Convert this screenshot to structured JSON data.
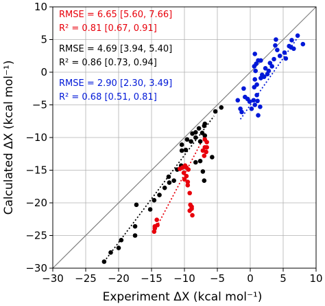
{
  "chart_data": {
    "type": "scatter",
    "xlabel": "Experiment ΔX (kcal mol⁻¹)",
    "ylabel": "Calculated ΔX (kcal mol⁻¹)",
    "xlim": [
      -30,
      10
    ],
    "ylim": [
      -30,
      10
    ],
    "xticks": [
      -30,
      -25,
      -20,
      -15,
      -10,
      -5,
      0,
      5,
      10
    ],
    "yticks": [
      -30,
      -25,
      -20,
      -15,
      -10,
      -5,
      0,
      5,
      10
    ],
    "grid": true,
    "identity_line": true,
    "colors": {
      "red": "#e8000b",
      "black": "#000000",
      "blue": "#0018d8",
      "grid": "#b0b0b0",
      "identity": "#808080"
    },
    "annotations": [
      {
        "rmse": "RMSE = 6.65 [5.60, 7.66]",
        "r2": "R² = 0.81 [0.67, 0.91]",
        "color": "#e8000b"
      },
      {
        "rmse": "RMSE = 4.69 [3.94, 5.40]",
        "r2": "R² = 0.86 [0.73, 0.94]",
        "color": "#000000"
      },
      {
        "rmse": "RMSE = 2.90 [2.30, 3.49]",
        "r2": "R² = 0.68 [0.51, 0.81]",
        "color": "#0018d8"
      }
    ],
    "series": [
      {
        "color": "#000000",
        "fit": {
          "x": [
            -22.2,
            -5.5
          ],
          "y": [
            -29.0,
            -6.7
          ]
        },
        "points": [
          [
            -22.2,
            -29.0
          ],
          [
            -21.2,
            -27.6
          ],
          [
            -20.0,
            -26.9
          ],
          [
            -19.6,
            -25.7
          ],
          [
            -17.5,
            -25.0
          ],
          [
            -17.5,
            -23.6
          ],
          [
            -17.3,
            -20.3
          ],
          [
            -15.2,
            -21.0
          ],
          [
            -14.6,
            -19.6
          ],
          [
            -13.8,
            -18.8
          ],
          [
            -13.0,
            -17.7
          ],
          [
            -12.3,
            -16.9
          ],
          [
            -12.4,
            -16.0
          ],
          [
            -11.6,
            -16.6
          ],
          [
            -11.1,
            -14.9
          ],
          [
            -10.5,
            -14.3
          ],
          [
            -10.4,
            -12.0
          ],
          [
            -10.4,
            -11.1
          ],
          [
            -9.8,
            -11.9
          ],
          [
            -9.6,
            -10.3
          ],
          [
            -9.0,
            -10.6
          ],
          [
            -8.8,
            -9.4
          ],
          [
            -8.3,
            -10.0
          ],
          [
            -8.3,
            -9.2
          ],
          [
            -7.8,
            -8.6
          ],
          [
            -7.6,
            -10.6
          ],
          [
            -7.3,
            -9.3
          ],
          [
            -7.0,
            -8.2
          ],
          [
            -6.9,
            -9.7
          ],
          [
            -8.3,
            -13.8
          ],
          [
            -7.6,
            -13.6
          ],
          [
            -7.2,
            -15.2
          ],
          [
            -7.0,
            -16.6
          ],
          [
            -5.8,
            -13.0
          ],
          [
            -5.3,
            -6.0
          ],
          [
            -4.4,
            -5.4
          ],
          [
            -6.9,
            -7.9
          ]
        ]
      },
      {
        "color": "#e8000b",
        "fit": {
          "x": [
            -14.7,
            -6.8
          ],
          "y": [
            -24.6,
            -9.5
          ]
        },
        "points": [
          [
            -14.6,
            -24.4
          ],
          [
            -14.5,
            -23.6
          ],
          [
            -14.1,
            -23.4
          ],
          [
            -14.5,
            -23.9
          ],
          [
            -14.2,
            -22.6
          ],
          [
            -10.7,
            -14.8
          ],
          [
            -10.3,
            -14.6
          ],
          [
            -9.9,
            -14.3
          ],
          [
            -9.7,
            -14.6
          ],
          [
            -9.4,
            -14.9
          ],
          [
            -10.1,
            -15.4
          ],
          [
            -9.7,
            -15.9
          ],
          [
            -10.0,
            -16.4
          ],
          [
            -9.5,
            -17.3
          ],
          [
            -9.2,
            -18.5
          ],
          [
            -9.1,
            -20.3
          ],
          [
            -8.9,
            -20.9
          ],
          [
            -8.8,
            -21.9
          ],
          [
            -9.2,
            -21.2
          ],
          [
            -8.9,
            -20.6
          ],
          [
            -9.5,
            -16.8
          ],
          [
            -7.0,
            -12.8
          ],
          [
            -6.7,
            -12.2
          ],
          [
            -6.6,
            -11.5
          ],
          [
            -6.6,
            -10.7
          ],
          [
            -6.9,
            -10.3
          ],
          [
            -7.2,
            -12.0
          ],
          [
            -6.9,
            -11.5
          ]
        ]
      },
      {
        "color": "#0018d8",
        "fit": {
          "x": [
            -1.5,
            7.2
          ],
          "y": [
            -7.2,
            5.3
          ]
        },
        "points": [
          [
            -1.9,
            -4.3
          ],
          [
            -1.5,
            -5.6
          ],
          [
            -1.3,
            -6.1
          ],
          [
            -1.0,
            -2.5
          ],
          [
            -0.8,
            -3.8
          ],
          [
            -0.4,
            -4.1
          ],
          [
            -0.1,
            -4.5
          ],
          [
            0.2,
            -5.6
          ],
          [
            0.5,
            -4.3
          ],
          [
            0.6,
            -2.3
          ],
          [
            0.7,
            -5.0
          ],
          [
            1.0,
            -3.5
          ],
          [
            1.1,
            -4.4
          ],
          [
            1.2,
            -6.6
          ],
          [
            1.5,
            -5.3
          ],
          [
            1.0,
            -1.9
          ],
          [
            0.7,
            -1.1
          ],
          [
            0.6,
            0.9
          ],
          [
            0.7,
            2.8
          ],
          [
            0.8,
            0.2
          ],
          [
            0.9,
            1.3
          ],
          [
            1.2,
            1.8
          ],
          [
            1.6,
            -0.9
          ],
          [
            1.8,
            -0.4
          ],
          [
            1.6,
            1.8
          ],
          [
            2.1,
            -0.7
          ],
          [
            2.3,
            0.6
          ],
          [
            2.6,
            -0.3
          ],
          [
            2.8,
            0.2
          ],
          [
            3.0,
            1.4
          ],
          [
            3.3,
            0.9
          ],
          [
            3.6,
            2.0
          ],
          [
            3.9,
            5.0
          ],
          [
            4.1,
            3.4
          ],
          [
            3.8,
            4.1
          ],
          [
            4.5,
            2.5
          ],
          [
            5.2,
            3.0
          ],
          [
            5.4,
            2.1
          ],
          [
            5.9,
            4.0
          ],
          [
            6.3,
            4.9
          ],
          [
            6.6,
            3.6
          ],
          [
            7.2,
            5.6
          ],
          [
            8.0,
            4.3
          ],
          [
            6.2,
            3.8
          ]
        ]
      }
    ]
  }
}
